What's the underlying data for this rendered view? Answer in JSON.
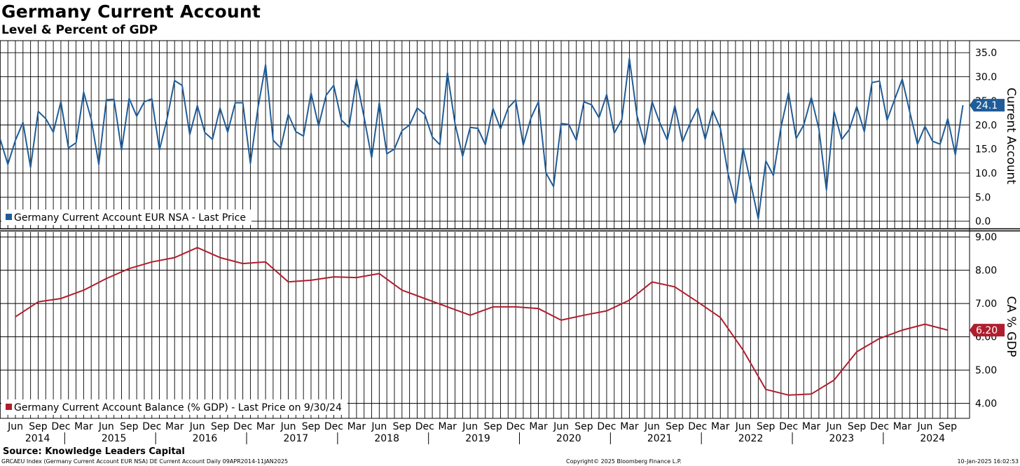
{
  "title": "Germany Current Account",
  "subtitle": "Level & Percent of GDP",
  "source": "Source: Knowledge Leaders Capital",
  "footer": {
    "left": "GRCAEU Index (Germany Current Account EUR NSA) DE Current Account  Daily 09APR2014-11JAN2025",
    "center": "Copyright© 2025 Bloomberg Finance L.P.",
    "right": "10-Jan-2025 16:02:53"
  },
  "colors": {
    "series1": "#1f5c99",
    "series2": "#b01e2e"
  },
  "x_axis": {
    "month_labels": [
      "Jun",
      "Sep",
      "Dec",
      "Mar",
      "Jun",
      "Sep",
      "Dec",
      "Mar",
      "Jun",
      "Sep",
      "Dec",
      "Mar",
      "Jun",
      "Sep",
      "Dec",
      "Mar",
      "Jun",
      "Sep",
      "Dec",
      "Mar",
      "Jun",
      "Sep",
      "Dec",
      "Mar",
      "Jun",
      "Sep",
      "Dec",
      "Mar",
      "Jun",
      "Sep",
      "Dec",
      "Mar",
      "Jun",
      "Sep",
      "Dec",
      "Mar",
      "Jun",
      "Sep",
      "Dec",
      "Mar",
      "Jun",
      "Sep"
    ],
    "year_labels": [
      "2014",
      "2015",
      "2016",
      "2017",
      "2018",
      "2019",
      "2020",
      "2021",
      "2022",
      "2023",
      "2024"
    ]
  },
  "chart_data": [
    {
      "type": "line",
      "panel": "top",
      "ylabel": "Current Account",
      "ylim": [
        -1.5,
        37.5
      ],
      "yticks": [
        "35.0",
        "30.0",
        "25.0",
        "20.0",
        "15.0",
        "10.0",
        "5.0",
        "0.0"
      ],
      "grid": true,
      "legend_position": "bottom-left",
      "last_value_label": "24.1",
      "series": [
        {
          "name": "Germany Current Account EUR NSA - Last Price",
          "frequency": "monthly",
          "start": "2014-04",
          "end": "2024-11",
          "values": [
            17.0,
            11.8,
            16.8,
            20.5,
            11.2,
            22.8,
            21.3,
            18.5,
            24.8,
            15.2,
            16.3,
            26.8,
            21.2,
            11.8,
            25.2,
            25.3,
            14.8,
            25.5,
            21.8,
            24.8,
            25.4,
            14.8,
            21.2,
            29.2,
            28.2,
            18.0,
            24.0,
            18.4,
            17.0,
            23.5,
            18.5,
            24.6,
            24.6,
            12.0,
            23.5,
            32.5,
            16.8,
            15.2,
            22.2,
            18.6,
            17.7,
            26.6,
            19.8,
            26.2,
            28.2,
            21.0,
            19.5,
            29.5,
            21.6,
            13.2,
            24.6,
            14.0,
            15.0,
            18.8,
            20.0,
            23.5,
            22.2,
            17.5,
            15.9,
            30.8,
            20.2,
            13.5,
            19.5,
            19.3,
            15.9,
            23.4,
            19.2,
            23.5,
            25.2,
            15.8,
            21.4,
            24.8,
            10.0,
            7.2,
            20.3,
            20.1,
            16.8,
            24.8,
            24.2,
            21.5,
            26.3,
            18.3,
            21.1,
            33.8,
            22.0,
            15.9,
            24.8,
            20.5,
            16.9,
            24.0,
            16.5,
            20.3,
            23.5,
            17.0,
            23.0,
            19.3,
            10.0,
            3.7,
            15.2,
            8.0,
            0.5,
            12.5,
            9.5,
            19.5,
            26.7,
            17.2,
            20.0,
            25.7,
            19.2,
            6.5,
            22.8,
            17.0,
            19.0,
            23.8,
            18.6,
            28.8,
            29.1,
            21.0,
            25.3,
            29.5,
            22.6,
            16.0,
            19.7,
            16.6,
            16.0,
            21.3,
            13.8,
            24.1
          ]
        }
      ]
    },
    {
      "type": "line",
      "panel": "bottom",
      "ylabel": "CA % GDP",
      "ylim": [
        3.55,
        9.15
      ],
      "yticks": [
        "9.00",
        "8.00",
        "7.00",
        "6.00",
        "5.00",
        "4.00"
      ],
      "grid": true,
      "legend_position": "bottom-left",
      "last_value_label": "6.20",
      "series": [
        {
          "name": "Germany Current Account Balance (% GDP) - Last Price on 9/30/24",
          "frequency": "quarterly",
          "start": "2014-06",
          "end": "2024-09",
          "values": [
            6.6,
            7.05,
            7.15,
            7.4,
            7.75,
            8.05,
            8.25,
            8.38,
            8.68,
            8.38,
            8.2,
            8.25,
            7.65,
            7.7,
            7.8,
            7.78,
            7.9,
            7.4,
            7.15,
            6.9,
            6.65,
            6.9,
            6.9,
            6.85,
            6.5,
            6.65,
            6.78,
            7.1,
            7.65,
            7.5,
            7.05,
            6.58,
            5.6,
            4.42,
            4.25,
            4.28,
            4.7,
            5.55,
            5.95,
            6.2,
            6.38,
            6.2
          ]
        }
      ]
    }
  ]
}
